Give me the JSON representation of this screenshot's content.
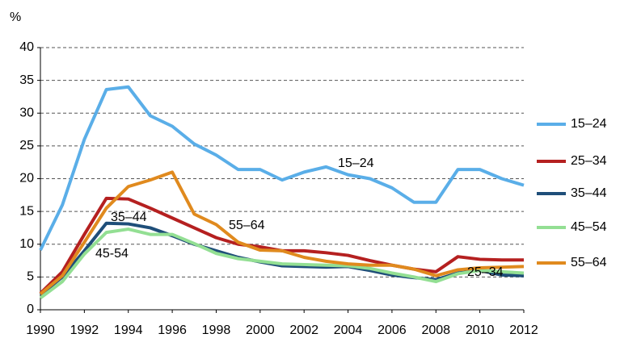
{
  "chart_data": {
    "type": "line",
    "y_label": "%",
    "x": [
      1990,
      1991,
      1992,
      1993,
      1994,
      1995,
      1996,
      1997,
      1998,
      1999,
      2000,
      2001,
      2002,
      2003,
      2004,
      2005,
      2006,
      2007,
      2008,
      2009,
      2010,
      2011,
      2012
    ],
    "xlim": [
      1990,
      2012
    ],
    "xticks": [
      1990,
      1992,
      1994,
      1996,
      1998,
      2000,
      2002,
      2004,
      2006,
      2008,
      2010,
      2012
    ],
    "ylim": [
      0,
      40
    ],
    "yticks": [
      0,
      5,
      10,
      15,
      20,
      25,
      30,
      35,
      40
    ],
    "grid": true,
    "legend": "right",
    "series": [
      {
        "name": "15–24",
        "color": "#5aaee8",
        "values": [
          9.1,
          16,
          26,
          33.6,
          34,
          29.6,
          28,
          25.3,
          23.6,
          21.4,
          21.4,
          19.8,
          21,
          21.8,
          20.6,
          20,
          18.6,
          16.4,
          16.4,
          21.4,
          21.4,
          20,
          19
        ]
      },
      {
        "name": "25–34",
        "color": "#b52020",
        "values": [
          2.5,
          5.8,
          11.5,
          17,
          16.9,
          15.5,
          14,
          12.5,
          11,
          10,
          9.6,
          9,
          9,
          8.7,
          8.3,
          7.5,
          6.8,
          6.2,
          5.8,
          8.1,
          7.7,
          7.6,
          7.6
        ]
      },
      {
        "name": "35–44",
        "color": "#1f4e79",
        "values": [
          2.3,
          5,
          9,
          13.2,
          13.1,
          12.5,
          11.3,
          10,
          9,
          8,
          7.3,
          6.7,
          6.6,
          6.5,
          6.6,
          6,
          5.3,
          4.9,
          4.6,
          5.6,
          6,
          5.3,
          5.2
        ]
      },
      {
        "name": "45–54",
        "color": "#93df93",
        "values": [
          1.8,
          4.3,
          8.5,
          11.8,
          12.3,
          11.5,
          11.5,
          10.1,
          8.6,
          7.8,
          7.4,
          7,
          6.9,
          6.8,
          6.7,
          6.3,
          5.6,
          5,
          4.3,
          5.5,
          6,
          5.8,
          5.6
        ]
      },
      {
        "name": "55–64",
        "color": "#e08a1e",
        "values": [
          2.4,
          5.2,
          10.3,
          15.5,
          18.8,
          19.8,
          21,
          14.6,
          13,
          10.3,
          9.1,
          9,
          8,
          7.4,
          7,
          6.8,
          6.8,
          6.2,
          5.2,
          6.1,
          6.4,
          6.5,
          6.6
        ]
      }
    ],
    "annotations": [
      "15–24",
      "35–44",
      "45-54",
      "55–64",
      "25–34"
    ]
  }
}
